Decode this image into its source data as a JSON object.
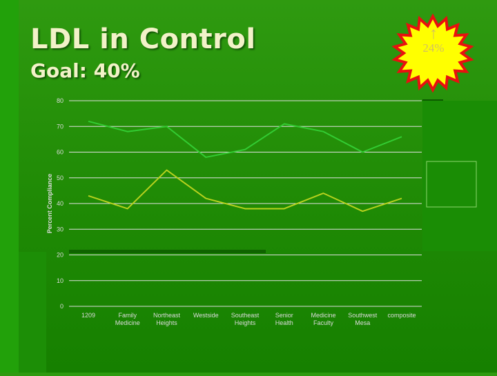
{
  "slide": {
    "title": "LDL in Control",
    "subtitle": "Goal: 40%"
  },
  "callout": {
    "arrow": "↑",
    "value": "24%",
    "fill": "#ffff00",
    "border": "#e81010"
  },
  "chart_data": {
    "type": "line",
    "title": "",
    "xlabel": "",
    "ylabel": "Percent Compliance",
    "ylim": [
      0,
      80
    ],
    "yticks": [
      0,
      10,
      20,
      30,
      40,
      50,
      60,
      70,
      80
    ],
    "grid": true,
    "categories": [
      [
        "1209"
      ],
      [
        "Family",
        "Medicine"
      ],
      [
        "Northeast",
        "Heights"
      ],
      [
        "Westside"
      ],
      [
        "Southeast",
        "Heights"
      ],
      [
        "Senior",
        "Health"
      ],
      [
        "Medicine",
        "Faculty"
      ],
      [
        "Southwest",
        "Mesa"
      ],
      [
        "composite"
      ]
    ],
    "series": [
      {
        "values": [
          72,
          68,
          70,
          58,
          61,
          71,
          68,
          60,
          66
        ],
        "color": "#33cc33"
      },
      {
        "values": [
          43,
          38,
          53,
          42,
          38,
          38,
          44,
          37,
          42
        ],
        "color": "#b8d21e"
      }
    ],
    "colors": {
      "axis_text": "#dcdcdc",
      "gridline": "#e0e0e0"
    }
  }
}
